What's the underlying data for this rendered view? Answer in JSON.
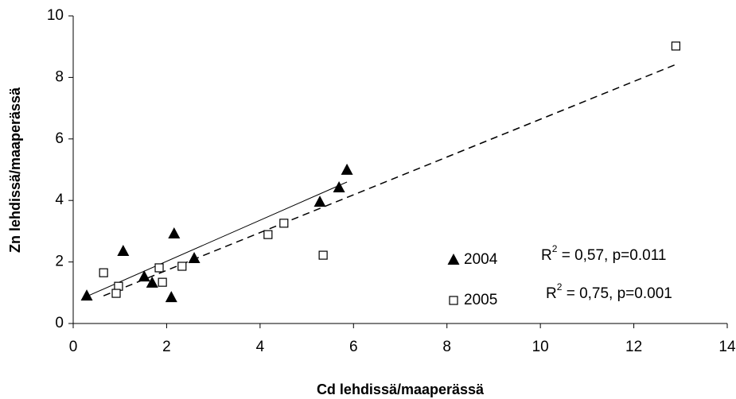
{
  "chart_data": {
    "type": "scatter",
    "x_label": "Cd lehdissä/maaperässä",
    "y_label": "Zn lehdissä/maaperässä",
    "xlim": [
      0,
      14
    ],
    "xticks": [
      0,
      2,
      4,
      6,
      8,
      10,
      12,
      14
    ],
    "ylim": [
      0,
      10
    ],
    "yticks": [
      0,
      2,
      4,
      6,
      8,
      10
    ],
    "series": [
      {
        "name": "2004",
        "marker": "triangle",
        "color": "#000000",
        "x": [
          0.29,
          1.07,
          1.52,
          1.69,
          2.16,
          2.1,
          2.59,
          5.28,
          5.69,
          5.86
        ],
        "values": [
          0.9,
          2.35,
          1.52,
          1.32,
          2.92,
          0.85,
          2.12,
          3.95,
          4.42,
          4.99
        ],
        "trend": {
          "style": "solid",
          "x": [
            0.29,
            5.86
          ],
          "values": [
            0.88,
            4.6
          ]
        },
        "annotation": {
          "base": "R",
          "sup": "2",
          "rest": " = 0,57, p=0.011"
        }
      },
      {
        "name": "2005",
        "marker": "square",
        "color": "#000000",
        "x": [
          0.65,
          0.97,
          0.92,
          1.84,
          1.91,
          2.33,
          4.17,
          4.51,
          5.35,
          12.9
        ],
        "values": [
          1.65,
          1.21,
          0.98,
          1.81,
          1.34,
          1.86,
          2.89,
          3.26,
          2.22,
          9.02
        ],
        "trend": {
          "style": "dashed",
          "x": [
            0.65,
            12.9
          ],
          "values": [
            0.9,
            8.42
          ]
        },
        "annotation": {
          "base": "R",
          "sup": "2",
          "rest": " = 0,75, p=0.001"
        }
      }
    ]
  }
}
